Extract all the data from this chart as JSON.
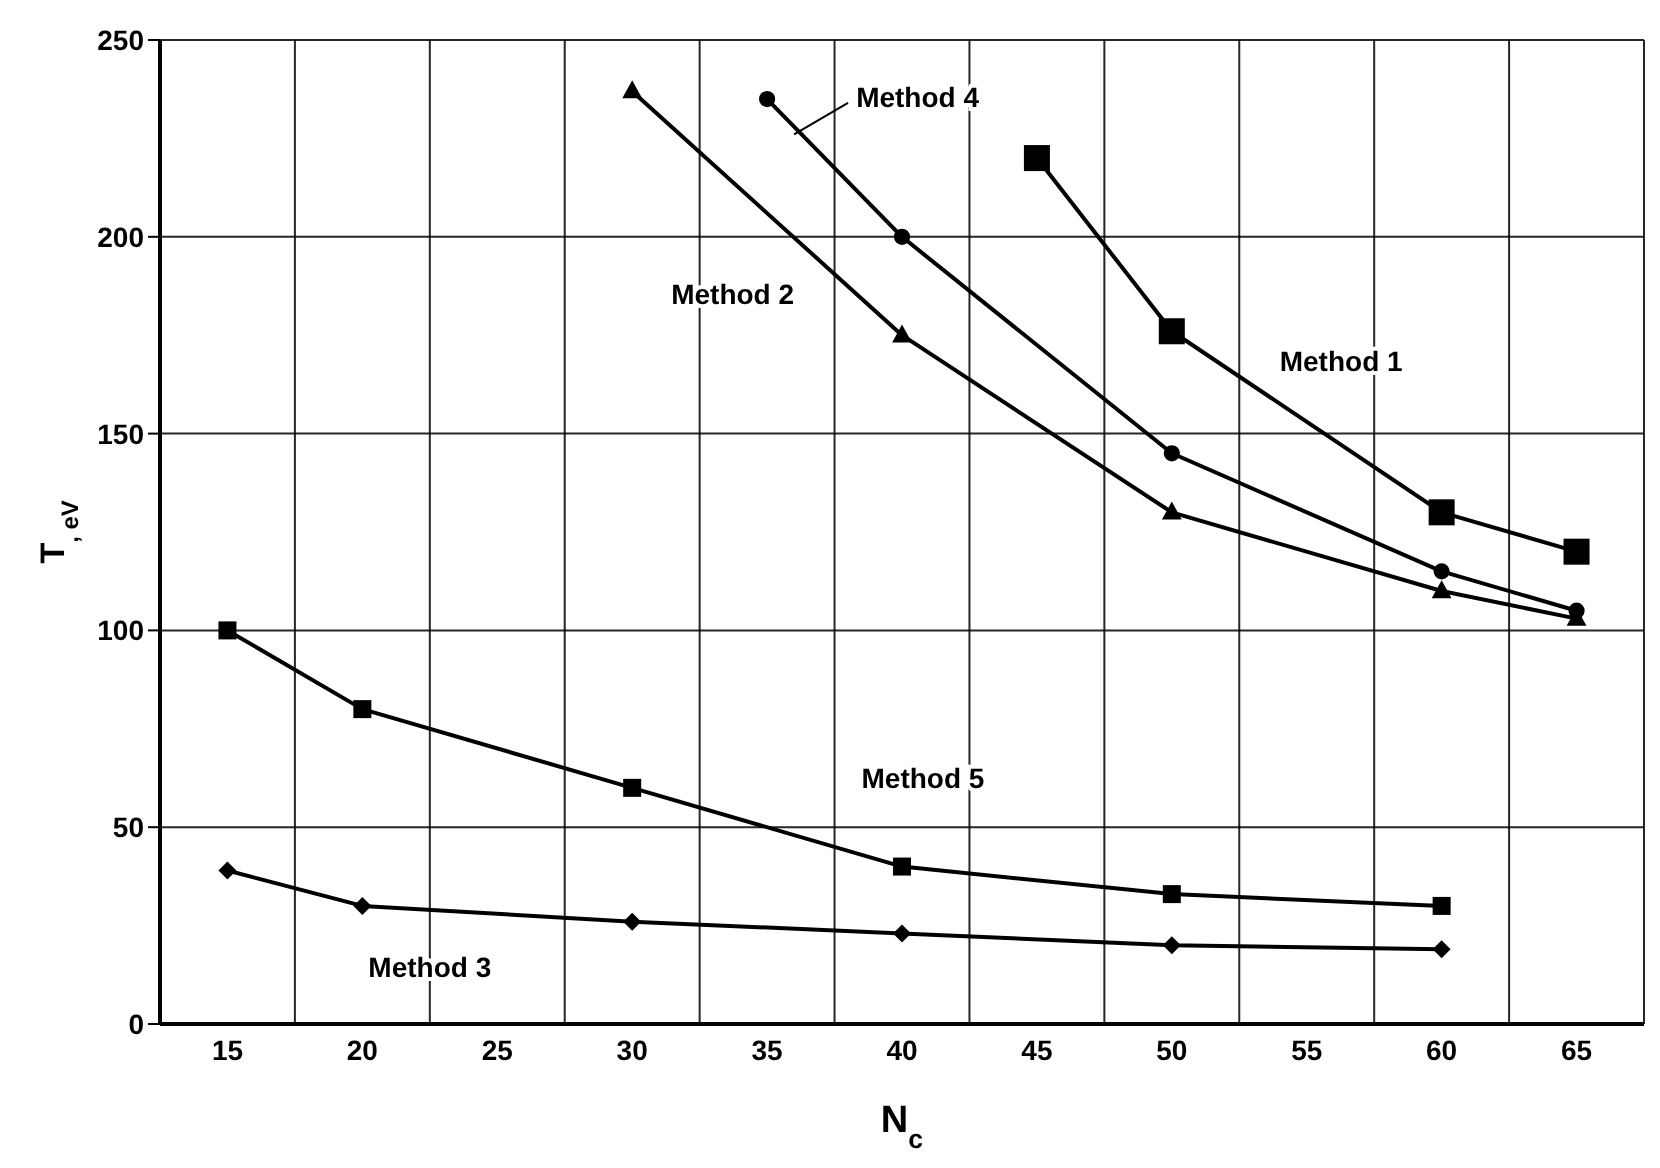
{
  "chart_data": {
    "type": "line",
    "xlabel": "N$_{c}$",
    "ylabel": "T$_{, eV}$",
    "categories": [
      "15",
      "20",
      "25",
      "30",
      "35",
      "40",
      "45",
      "50",
      "55",
      "60",
      "65"
    ],
    "series": [
      {
        "name": "Method 1",
        "color": "#000000",
        "marker": "square",
        "values": [
          null,
          null,
          null,
          null,
          null,
          null,
          220,
          176,
          null,
          130,
          120
        ]
      },
      {
        "name": "Method 2",
        "color": "#000000",
        "marker": "triangle",
        "values": [
          null,
          null,
          null,
          237,
          null,
          175,
          null,
          130,
          null,
          110,
          103
        ]
      },
      {
        "name": "Method 3",
        "color": "#000000",
        "marker": "diamond",
        "values": [
          39,
          30,
          null,
          26,
          null,
          23,
          null,
          20,
          null,
          19,
          null
        ]
      },
      {
        "name": "Method 4",
        "color": "#000000",
        "marker": "circle",
        "values": [
          null,
          null,
          null,
          null,
          235,
          200,
          null,
          145,
          null,
          115,
          105
        ]
      },
      {
        "name": "Method 5",
        "color": "#000000",
        "marker": "square",
        "values": [
          100,
          80,
          null,
          60,
          null,
          40,
          null,
          33,
          null,
          30,
          null
        ]
      }
    ],
    "ylim": [
      0,
      250
    ],
    "yticks": [
      0,
      50,
      100,
      150,
      200,
      250
    ],
    "grid": true
  }
}
